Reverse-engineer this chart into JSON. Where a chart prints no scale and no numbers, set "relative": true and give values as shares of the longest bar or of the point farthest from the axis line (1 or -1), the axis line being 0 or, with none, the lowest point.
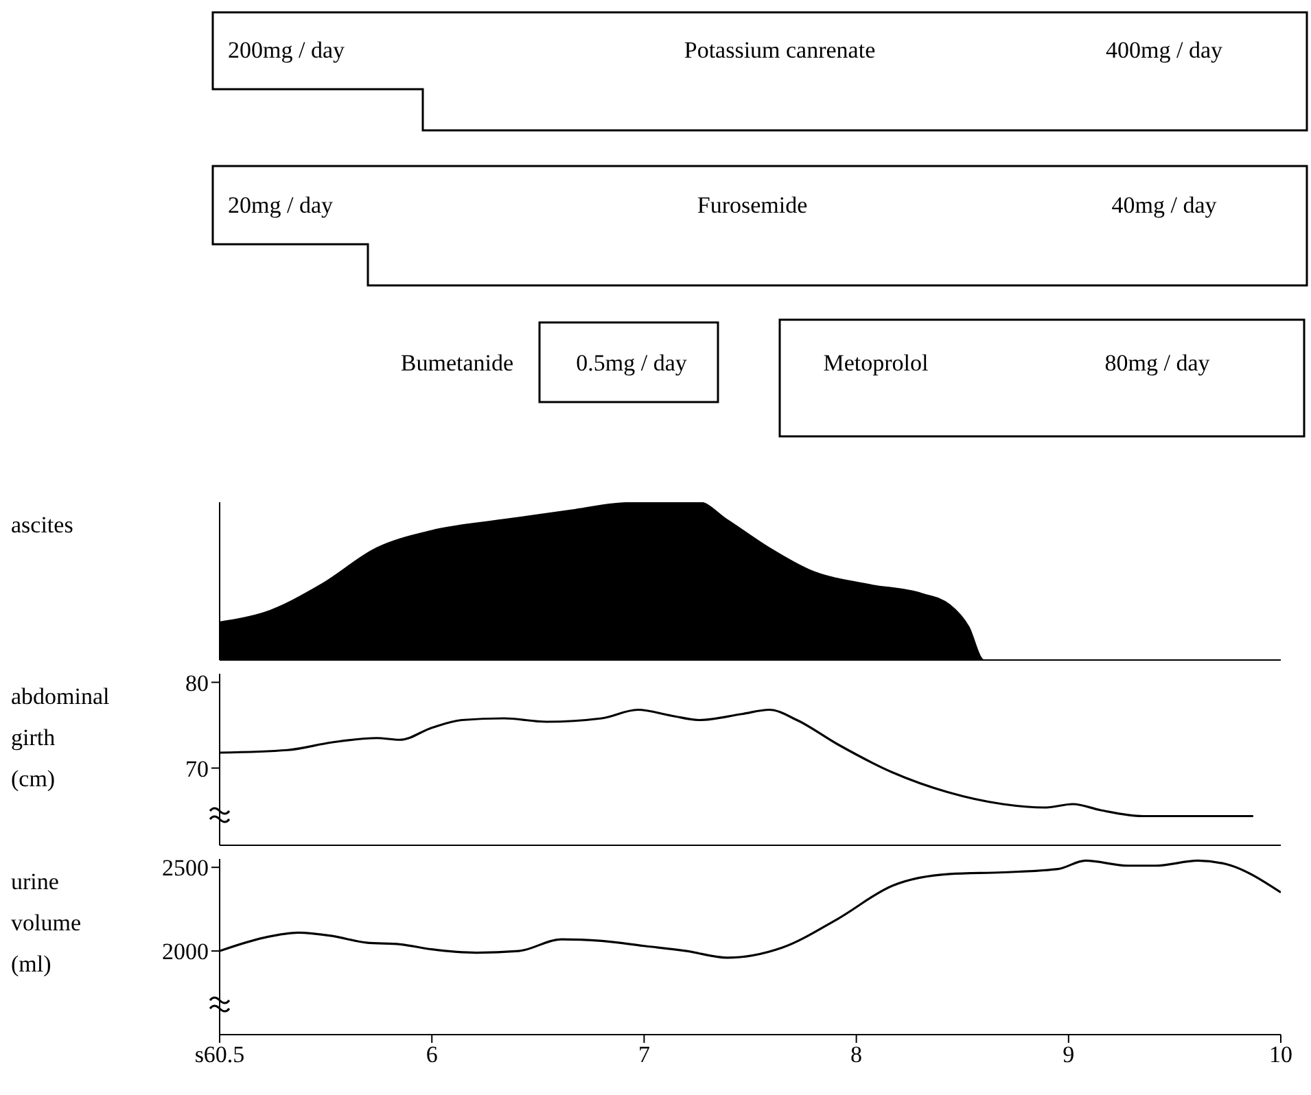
{
  "chart_data": [
    {
      "type": "other",
      "annotations": [
        "200mg / day",
        "Potassium canrenate",
        "400mg / day",
        "20mg / day",
        "Furosemide",
        "40mg / day",
        "Bumetanide",
        "0.5mg / day",
        "Metoprolol",
        "80mg / day"
      ]
    },
    {
      "type": "area",
      "ylabel": "ascites",
      "relative": true,
      "color": "#000000",
      "tick_labels": false,
      "xlim": [
        5,
        10
      ],
      "x": [
        5,
        5.21,
        5.48,
        5.74,
        6,
        6.34,
        6.66,
        6.86,
        7,
        7.26,
        7.39,
        7.59,
        7.78,
        8.05,
        8.31,
        8.44,
        8.53,
        8.6,
        10
      ],
      "values": [
        0.24,
        0.3,
        0.48,
        0.71,
        0.82,
        0.89,
        0.95,
        0.99,
        1,
        1,
        0.89,
        0.71,
        0.57,
        0.48,
        0.42,
        0.35,
        0.21,
        0,
        0
      ]
    },
    {
      "type": "line",
      "ylabel": "abdominal\ngirth\n(cm)",
      "color": "#000000",
      "tick_labels": "y",
      "xlim": [
        5,
        10
      ],
      "ylim": [
        61,
        81
      ],
      "yticks": [
        70,
        80
      ],
      "x": [
        5,
        5.32,
        5.53,
        5.74,
        5.85,
        6,
        6.14,
        6.34,
        6.54,
        6.8,
        6.97,
        7.13,
        7.26,
        7.46,
        7.59,
        7.72,
        7.91,
        8.17,
        8.43,
        8.69,
        8.89,
        9.02,
        9.15,
        9.35,
        9.61,
        9.87
      ],
      "values": [
        71.8,
        72.1,
        73,
        73.5,
        73.3,
        74.7,
        75.6,
        75.8,
        75.4,
        75.8,
        76.8,
        76.1,
        75.6,
        76.3,
        76.8,
        75.6,
        72.8,
        69.5,
        67.2,
        65.8,
        65.4,
        65.8,
        65.1,
        64.4,
        64.4,
        64.4
      ]
    },
    {
      "type": "line",
      "ylabel": "urine\nvolume\n(ml)",
      "color": "#000000",
      "xlim": [
        5,
        10
      ],
      "ylim": [
        1500,
        2550
      ],
      "yticks": [
        2000,
        2500
      ],
      "xticks": [
        {
          "value": 5,
          "label": "s60.5"
        },
        6,
        7,
        8,
        9,
        10
      ],
      "x": [
        5,
        5.21,
        5.37,
        5.53,
        5.69,
        5.85,
        6,
        6.21,
        6.41,
        6.61,
        6.8,
        7,
        7.2,
        7.39,
        7.65,
        7.91,
        8.17,
        8.44,
        8.69,
        8.95,
        9.08,
        9.28,
        9.41,
        9.61,
        9.74,
        10
      ],
      "values": [
        2000,
        2080,
        2110,
        2090,
        2050,
        2040,
        2010,
        1990,
        2000,
        2070,
        2060,
        2030,
        2000,
        1960,
        2020,
        2190,
        2390,
        2460,
        2470,
        2490,
        2540,
        2510,
        2510,
        2540,
        2520,
        2350
      ]
    }
  ]
}
